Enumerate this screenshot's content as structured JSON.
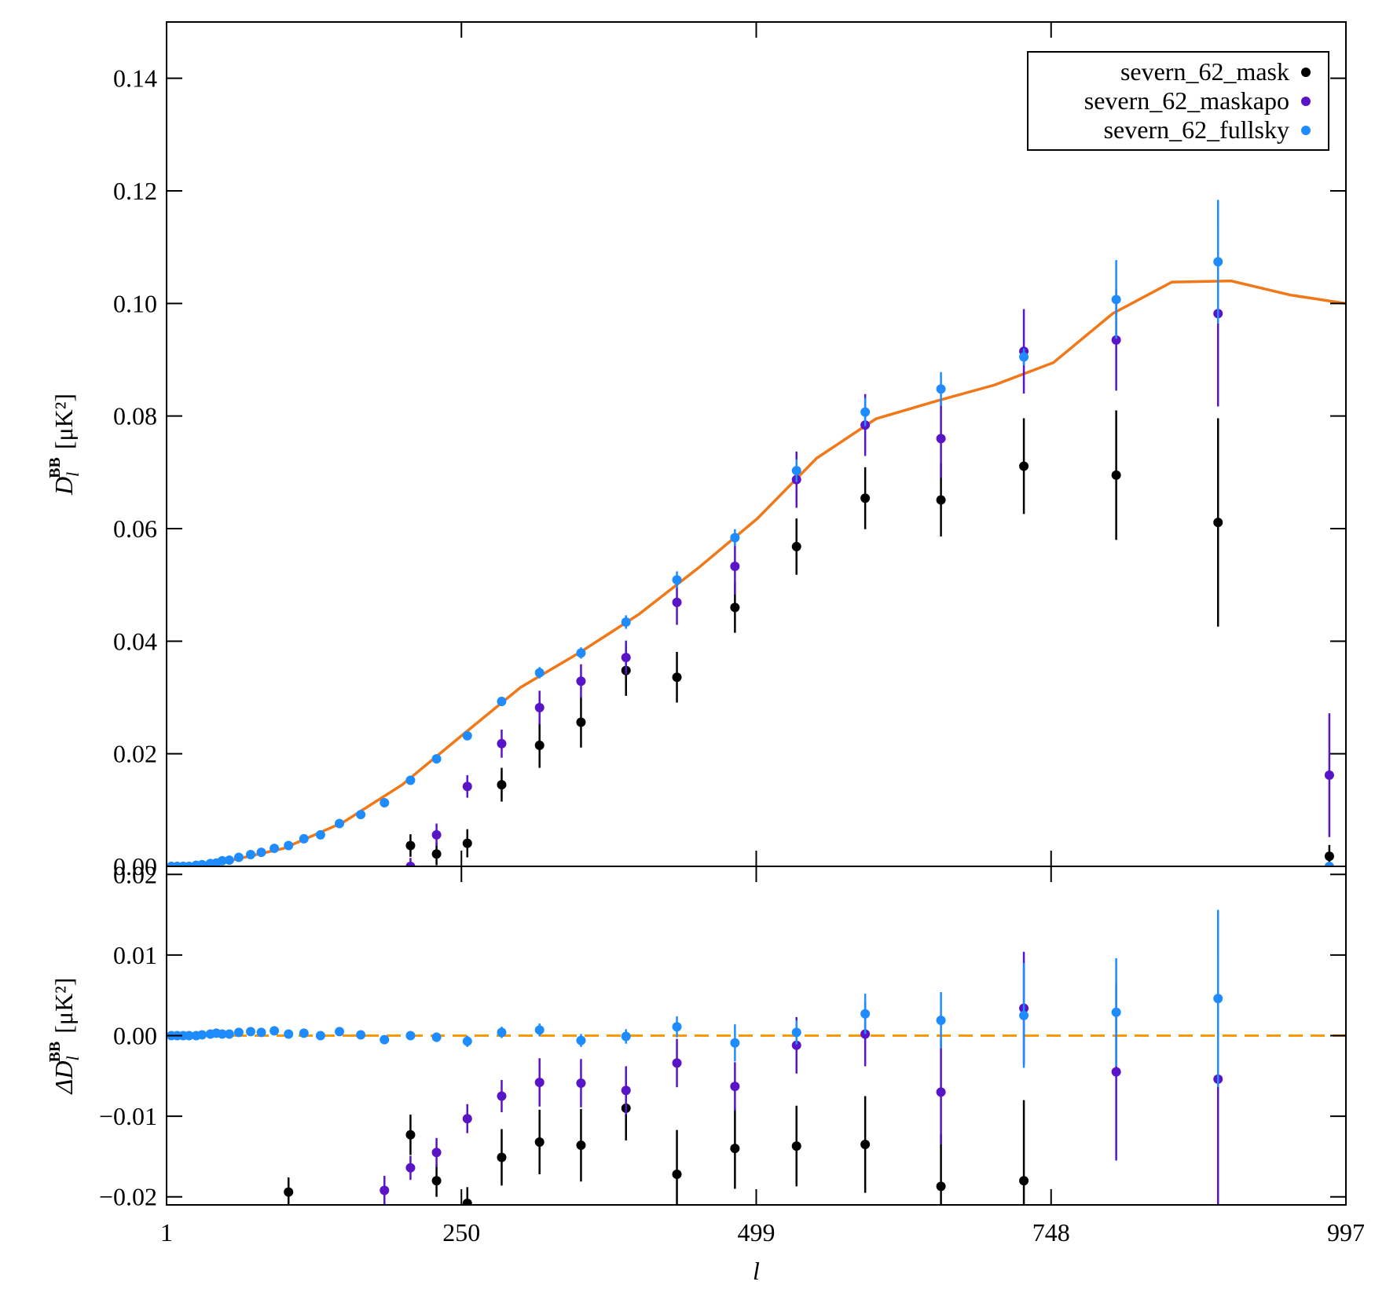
{
  "chart_data": [
    {
      "type": "scatter",
      "ylabel": {
        "symbol": "D",
        "sub": "l",
        "sup": "BB",
        "unit": "[μK²]"
      },
      "xlim": [
        1,
        997
      ],
      "ylim": [
        0,
        0.15
      ],
      "xticks": [
        1,
        250,
        499,
        748,
        997
      ],
      "yticks": [
        {
          "value": 0,
          "label": "0.00"
        },
        0.02,
        0.04,
        0.06,
        0.08,
        {
          "value": 0.1,
          "label": "0.10"
        },
        0.12,
        0.14
      ],
      "legend": "upper right",
      "x": [
        5,
        10,
        15,
        20,
        26,
        31,
        38,
        43,
        48,
        54,
        62,
        72,
        81,
        92,
        104,
        117,
        131,
        147,
        165,
        185,
        207,
        229,
        255,
        284,
        316,
        351,
        389,
        432,
        481,
        533,
        591,
        655,
        725,
        803,
        889,
        983
      ],
      "series": [
        {
          "name": "severn_62_mask",
          "color": "#000000",
          "values": [
            null,
            null,
            null,
            null,
            null,
            null,
            null,
            null,
            null,
            null,
            null,
            null,
            null,
            null,
            null,
            null,
            null,
            null,
            null,
            null,
            0.0037,
            0.0022,
            0.0041,
            0.0145,
            0.0215,
            0.0256,
            0.0348,
            0.0336,
            0.046,
            0.0568,
            0.0654,
            0.0651,
            0.0711,
            0.0695,
            0.0611,
            0.0018
          ],
          "errors": [
            null,
            null,
            null,
            null,
            null,
            null,
            null,
            null,
            null,
            null,
            null,
            null,
            null,
            null,
            null,
            null,
            null,
            null,
            null,
            null,
            0.002,
            0.002,
            0.0025,
            0.003,
            0.004,
            0.0045,
            0.0045,
            0.0045,
            0.0045,
            0.005,
            0.0055,
            0.0065,
            0.0085,
            0.0115,
            0.0185,
            0.002
          ]
        },
        {
          "name": "severn_62_maskapo",
          "color": "#5a14c8",
          "values": [
            null,
            null,
            null,
            null,
            null,
            null,
            null,
            null,
            null,
            null,
            null,
            null,
            null,
            null,
            null,
            null,
            null,
            null,
            null,
            null,
            0,
            0.0056,
            0.0142,
            0.0218,
            0.0282,
            0.0329,
            0.0371,
            0.0469,
            0.0533,
            0.0687,
            0.0784,
            0.076,
            0.0915,
            0.0935,
            0.0982,
            0.0162
          ],
          "errors": [
            null,
            null,
            null,
            null,
            null,
            null,
            null,
            null,
            null,
            null,
            null,
            null,
            null,
            null,
            null,
            null,
            null,
            null,
            null,
            null,
            0.0015,
            0.002,
            0.002,
            0.0025,
            0.003,
            0.003,
            0.003,
            0.004,
            0.005,
            0.005,
            0.0055,
            0.007,
            0.0075,
            0.009,
            0.0165,
            0.011
          ]
        },
        {
          "name": "severn_62_fullsky",
          "color": "#1e8cff",
          "values": [
            0,
            0,
            0,
            0,
            0.0002,
            0.0003,
            0.0005,
            0.0006,
            0.001,
            0.0011,
            0.0016,
            0.0021,
            0.0025,
            0.0032,
            0.0037,
            0.0049,
            0.0056,
            0.0076,
            0.0092,
            0.0113,
            0.0153,
            0.0191,
            0.0232,
            0.0293,
            0.0344,
            0.0379,
            0.0434,
            0.0509,
            0.0584,
            0.0703,
            0.0807,
            0.0848,
            0.0905,
            0.1007,
            0.1074,
            0
          ],
          "errors": [
            0.0003,
            0.0003,
            0.0003,
            0.0003,
            0.0003,
            0.0003,
            0.0003,
            0.0003,
            0.0003,
            0.0003,
            0.0003,
            0.0003,
            0.0003,
            0.0003,
            0.0003,
            0.0003,
            0.0003,
            0.0003,
            0.0003,
            0.0003,
            0.0005,
            0.0006,
            0.0008,
            0.0008,
            0.001,
            0.001,
            0.0012,
            0.0015,
            0.0015,
            0.002,
            0.0025,
            0.003,
            0.0015,
            0.007,
            0.011,
            0.0005
          ]
        }
      ],
      "model": {
        "color": "#f07818",
        "x": [
          1,
          50,
          100,
          150,
          200,
          250,
          300,
          350,
          400,
          450,
          500,
          550,
          600,
          650,
          700,
          750,
          800,
          850,
          900,
          950,
          997
        ],
        "values": [
          0,
          0.0008,
          0.0032,
          0.0078,
          0.0145,
          0.0232,
          0.0318,
          0.038,
          0.0448,
          0.053,
          0.0618,
          0.0725,
          0.0795,
          0.0826,
          0.0855,
          0.0895,
          0.0982,
          0.1038,
          0.104,
          0.1015,
          0.1
        ]
      }
    },
    {
      "type": "scatter",
      "xlabel": "l",
      "ylabel": {
        "symbol": "ΔD",
        "sub": "l",
        "sup": "BB",
        "unit": "[μK²]"
      },
      "xlim": [
        1,
        997
      ],
      "ylim": [
        -0.021,
        0.021
      ],
      "xticks": [
        1,
        250,
        499,
        748,
        997
      ],
      "yticks": [
        {
          "value": -0.02,
          "label": "−0.02"
        },
        {
          "value": -0.01,
          "label": "−0.01"
        },
        {
          "value": 0,
          "label": "0.00"
        },
        0.01,
        0.02
      ],
      "reference_line": {
        "value": 0,
        "color": "#ff9900",
        "style": "dashed"
      },
      "x": [
        5,
        10,
        15,
        20,
        26,
        31,
        38,
        43,
        48,
        54,
        62,
        72,
        81,
        92,
        104,
        117,
        131,
        147,
        165,
        185,
        207,
        229,
        255,
        284,
        316,
        351,
        389,
        432,
        481,
        533,
        591,
        655,
        725,
        803,
        889,
        983
      ],
      "series": [
        {
          "color": "#000000",
          "values": [
            null,
            null,
            null,
            null,
            null,
            null,
            null,
            null,
            null,
            null,
            null,
            null,
            null,
            null,
            -0.0194,
            null,
            null,
            null,
            null,
            null,
            -0.0123,
            -0.018,
            -0.0208,
            -0.0151,
            -0.0132,
            -0.0136,
            -0.009,
            -0.0172,
            -0.014,
            -0.0137,
            -0.0135,
            -0.0187,
            -0.018,
            null,
            null,
            null
          ],
          "errors": [
            null,
            null,
            null,
            null,
            null,
            null,
            null,
            null,
            null,
            null,
            null,
            null,
            null,
            null,
            0.0018,
            null,
            null,
            null,
            null,
            null,
            0.0025,
            0.002,
            0.002,
            0.0035,
            0.004,
            0.0045,
            0.004,
            0.0055,
            0.005,
            0.005,
            0.006,
            0.0065,
            0.01,
            null,
            null,
            null
          ]
        },
        {
          "color": "#5a14c8",
          "values": [
            null,
            null,
            null,
            null,
            null,
            null,
            null,
            null,
            null,
            null,
            null,
            null,
            null,
            null,
            null,
            null,
            null,
            null,
            null,
            -0.0192,
            -0.0164,
            -0.0145,
            -0.0103,
            -0.0075,
            -0.0058,
            -0.0059,
            -0.0068,
            -0.0034,
            -0.0063,
            -0.0012,
            0.0002,
            -0.007,
            0.0034,
            -0.0045,
            -0.0054,
            null
          ],
          "errors": [
            null,
            null,
            null,
            null,
            null,
            null,
            null,
            null,
            null,
            null,
            null,
            null,
            null,
            null,
            null,
            null,
            null,
            null,
            null,
            0.0018,
            0.0015,
            0.0018,
            0.0018,
            0.002,
            0.003,
            0.003,
            0.003,
            0.003,
            0.003,
            0.0035,
            0.004,
            0.0065,
            0.007,
            0.011,
            0.016,
            null
          ]
        },
        {
          "color": "#1e8cff",
          "values": [
            0,
            0,
            0,
            0,
            0,
            0.0001,
            0.0002,
            0.0003,
            0.0002,
            0.0002,
            0.0004,
            0.0005,
            0.0004,
            0.0006,
            0.0002,
            0.0003,
            0,
            0.0005,
            0.0001,
            -0.0005,
            0,
            -0.0002,
            -0.0007,
            0.0004,
            0.0007,
            -0.0006,
            -0.0001,
            0.0011,
            -0.0009,
            0.0004,
            0.0027,
            0.0019,
            0.0025,
            0.0029,
            0.0046,
            null
          ],
          "errors": [
            0.0002,
            0.0002,
            0.0002,
            0.0002,
            0.0002,
            0.0002,
            0.0002,
            0.0002,
            0.0002,
            0.0002,
            0.0002,
            0.0002,
            0.0002,
            0.0002,
            0.0002,
            0.0002,
            0.0002,
            0.0002,
            0.0002,
            0.0002,
            0.0005,
            0.0006,
            0.0007,
            0.0007,
            0.0008,
            0.0008,
            0.0009,
            0.0013,
            0.0023,
            0.0015,
            0.0025,
            0.0035,
            0.0065,
            0.0067,
            0.011,
            null
          ]
        }
      ]
    }
  ]
}
